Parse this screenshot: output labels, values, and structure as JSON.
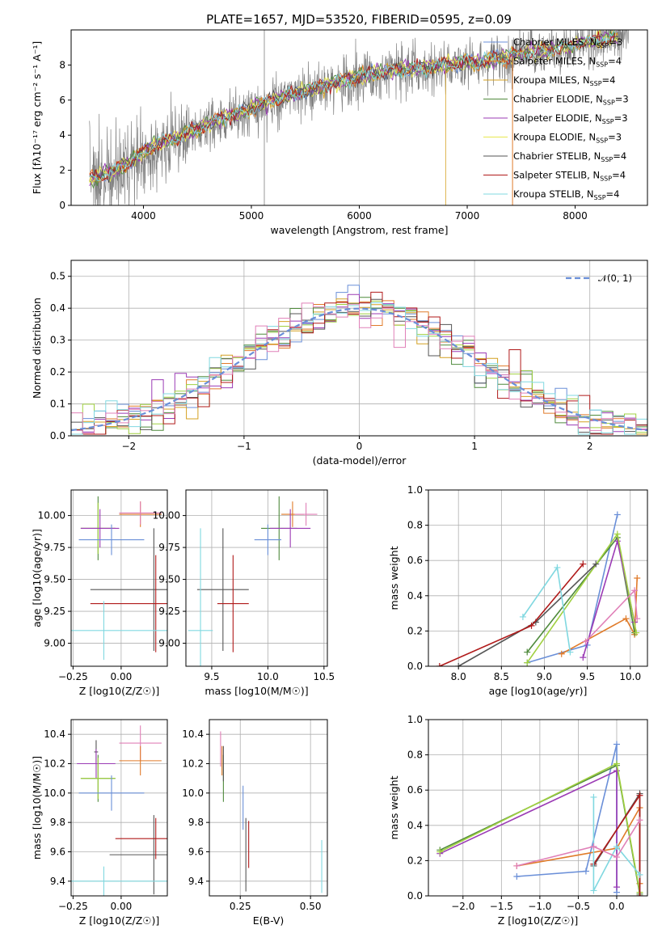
{
  "figure_title": "PLATE=1657, MJD=53520, FIBERID=0595, z=0.09",
  "colors": {
    "Chabrier MILES": "#6a8fd8",
    "Salpeter MILES": "#e07b2a",
    "Kroupa MILES": "#d4a020",
    "Chabrier ELODIE": "#4f8a3c",
    "Salpeter ELODIE": "#9b3bb5",
    "Kroupa ELODIE": "#e8e850",
    "Chabrier STELIB": "#555555",
    "Salpeter STELIB": "#b01a1a",
    "Kroupa STELIB": "#80d8e0",
    "pink": "#e080b8",
    "lime": "#a0d040",
    "data": "#808080",
    "normal": "#6a8fd8"
  },
  "chart_data": [
    {
      "id": "spectrum",
      "type": "line",
      "title": "PLATE=1657, MJD=53520, FIBERID=0595, z=0.09",
      "xlabel": "wavelength [Angstrom, rest frame]",
      "ylabel": "Flux [fλ10⁻¹⁷ erg cm⁻² s⁻¹ A⁻¹]",
      "xlim": [
        3330,
        8670
      ],
      "ylim": [
        0,
        10
      ],
      "xticks": [
        4000,
        5000,
        6000,
        7000,
        8000
      ],
      "yticks": [
        0,
        2,
        4,
        6,
        8
      ],
      "grid": false,
      "legend": "top-right",
      "series": [
        {
          "name": "Chabrier MILES, NSSP=3",
          "label_main": "Chabrier MILES, N",
          "label_sub": "SSP",
          "label_tail": "=3"
        },
        {
          "name": "Salpeter MILES, NSSP=4",
          "label_main": "Salpeter MILES, N",
          "label_sub": "SSP",
          "label_tail": "=4"
        },
        {
          "name": "Kroupa MILES, NSSP=4",
          "label_main": "Kroupa MILES, N",
          "label_sub": "SSP",
          "label_tail": "=4"
        },
        {
          "name": "Chabrier ELODIE, NSSP=3",
          "label_main": "Chabrier ELODIE, N",
          "label_sub": "SSP",
          "label_tail": "=3"
        },
        {
          "name": "Salpeter ELODIE, NSSP=3",
          "label_main": "Salpeter ELODIE, N",
          "label_sub": "SSP",
          "label_tail": "=3"
        },
        {
          "name": "Kroupa ELODIE, NSSP=3",
          "label_main": "Kroupa ELODIE, N",
          "label_sub": "SSP",
          "label_tail": "=3"
        },
        {
          "name": "Chabrier STELIB, NSSP=4",
          "label_main": "Chabrier STELIB, N",
          "label_sub": "SSP",
          "label_tail": "=4"
        },
        {
          "name": "Salpeter STELIB, NSSP=4",
          "label_main": "Salpeter STELIB, N",
          "label_sub": "SSP",
          "label_tail": "=4"
        },
        {
          "name": "Kroupa STELIB, NSSP=4",
          "label_main": "Kroupa STELIB, N",
          "label_sub": "SSP",
          "label_tail": "=4"
        }
      ],
      "continuum_x": [
        3500,
        3700,
        3900,
        4100,
        4300,
        4500,
        4700,
        4900,
        5100,
        5300,
        5500,
        5700,
        5900,
        6100,
        6300,
        6500,
        6700,
        6900,
        7100,
        7300,
        7500,
        7700,
        7900,
        8100,
        8300,
        8500
      ],
      "continuum_y": [
        1.6,
        2.0,
        2.7,
        3.6,
        3.9,
        4.5,
        5.0,
        5.4,
        5.9,
        6.3,
        6.6,
        7.0,
        7.3,
        7.6,
        7.8,
        7.9,
        8.0,
        8.2,
        8.3,
        8.5,
        8.8,
        8.9,
        9.1,
        9.4,
        9.6,
        9.8
      ]
    },
    {
      "id": "residuals",
      "type": "histogram",
      "xlabel": "(data-model)/error",
      "ylabel": "Normed distribution",
      "xlim": [
        -2.5,
        2.5
      ],
      "ylim": [
        0,
        0.55
      ],
      "xticks": [
        -2,
        -1,
        0,
        1,
        2
      ],
      "yticks": [
        0.0,
        0.1,
        0.2,
        0.3,
        0.4,
        0.5
      ],
      "grid": true,
      "legend": "top-right",
      "legend_label": "𝒩(0, 1)",
      "normal_curve": {
        "mean": 0,
        "sigma": 1
      }
    },
    {
      "id": "age-vs-Z",
      "type": "errorbar",
      "xlabel": "Z [log10(Z/Z☉)]",
      "ylabel": "age [log10(age/yr)]",
      "xlim": [
        -0.26,
        0.24
      ],
      "ylim": [
        8.82,
        10.2
      ],
      "xticks": [
        -0.25,
        0.0
      ],
      "yticks": [
        9.0,
        9.25,
        9.5,
        9.75,
        10.0
      ],
      "grid": true,
      "points": [
        {
          "c": "Salpeter MILES",
          "x": 0.1,
          "y": 10.01,
          "xerr": 0.11,
          "yerr": 0.1
        },
        {
          "c": "pink",
          "x": 0.1,
          "y": 10.02,
          "xerr": 0.11,
          "yerr": 0.09
        },
        {
          "c": "Chabrier ELODIE",
          "x": -0.12,
          "y": 9.9,
          "xerr": 0.09,
          "yerr": 0.25
        },
        {
          "c": "lime",
          "x": -0.12,
          "y": 9.9,
          "xerr": 0.09,
          "yerr": 0.2
        },
        {
          "c": "Salpeter ELODIE",
          "x": -0.11,
          "y": 9.9,
          "xerr": 0.1,
          "yerr": 0.15
        },
        {
          "c": "Chabrier MILES",
          "x": -0.05,
          "y": 9.81,
          "xerr": 0.17,
          "yerr": 0.12
        },
        {
          "c": "Chabrier STELIB",
          "x": 0.17,
          "y": 9.42,
          "xerr": 0.33,
          "yerr": 0.48
        },
        {
          "c": "Salpeter STELIB",
          "x": 0.18,
          "y": 9.31,
          "xerr": 0.34,
          "yerr": 0.38
        },
        {
          "c": "Kroupa STELIB",
          "x": -0.09,
          "y": 9.1,
          "xerr": 0.33,
          "yerr": 0.23
        }
      ]
    },
    {
      "id": "age-vs-mass",
      "type": "errorbar",
      "xlabel": "mass [log10(M/M☉)]",
      "ylabel": "",
      "xlim": [
        9.27,
        10.53
      ],
      "ylim": [
        8.82,
        10.2
      ],
      "xticks": [
        9.5,
        10.0,
        10.5
      ],
      "yticks": [
        9.0,
        9.25,
        9.5,
        9.75,
        10.0
      ],
      "grid": true,
      "points": [
        {
          "c": "Salpeter MILES",
          "x": 10.22,
          "y": 10.01,
          "xerr": 0.1,
          "yerr": 0.1
        },
        {
          "c": "pink",
          "x": 10.34,
          "y": 10.01,
          "xerr": 0.1,
          "yerr": 0.09
        },
        {
          "c": "Chabrier ELODIE",
          "x": 10.1,
          "y": 9.9,
          "xerr": 0.16,
          "yerr": 0.25
        },
        {
          "c": "Salpeter ELODIE",
          "x": 10.2,
          "y": 9.9,
          "xerr": 0.18,
          "yerr": 0.15
        },
        {
          "c": "Chabrier MILES",
          "x": 10.0,
          "y": 9.81,
          "xerr": 0.12,
          "yerr": 0.12
        },
        {
          "c": "Chabrier STELIB",
          "x": 9.6,
          "y": 9.42,
          "xerr": 0.23,
          "yerr": 0.48
        },
        {
          "c": "Salpeter STELIB",
          "x": 9.69,
          "y": 9.31,
          "xerr": 0.14,
          "yerr": 0.38
        },
        {
          "c": "Kroupa STELIB",
          "x": 9.4,
          "y": 9.1,
          "xerr": 0.11,
          "yerr": 0.8
        }
      ]
    },
    {
      "id": "weight-vs-age",
      "type": "line",
      "xlabel": "age [log10(age/yr)]",
      "ylabel": "mass weight",
      "xlim": [
        7.65,
        10.2
      ],
      "ylim": [
        0,
        1.0
      ],
      "xticks": [
        8.0,
        8.5,
        9.0,
        9.5,
        10.0
      ],
      "yticks": [
        0.0,
        0.2,
        0.4,
        0.6,
        0.8,
        1.0
      ],
      "grid": true,
      "series": [
        {
          "c": "Chabrier MILES",
          "x": [
            8.8,
            9.5,
            9.85
          ],
          "y": [
            0.02,
            0.12,
            0.86
          ]
        },
        {
          "c": "Salpeter MILES",
          "x": [
            9.2,
            9.95,
            10.05,
            10.08
          ],
          "y": [
            0.07,
            0.27,
            0.18,
            0.5
          ]
        },
        {
          "c": "Chabrier ELODIE",
          "x": [
            8.8,
            9.85,
            10.05
          ],
          "y": [
            0.08,
            0.73,
            0.19
          ]
        },
        {
          "c": "Salpeter ELODIE",
          "x": [
            9.45,
            9.85,
            10.05
          ],
          "y": [
            0.05,
            0.71,
            0.25
          ]
        },
        {
          "c": "lime",
          "x": [
            8.8,
            9.85,
            10.07
          ],
          "y": [
            0.02,
            0.75,
            0.19
          ]
        },
        {
          "c": "Chabrier STELIB",
          "x": [
            8.0,
            8.9,
            9.6
          ],
          "y": [
            0.0,
            0.25,
            0.58
          ]
        },
        {
          "c": "Salpeter STELIB",
          "x": [
            7.78,
            8.85,
            9.45
          ],
          "y": [
            0.0,
            0.23,
            0.58
          ]
        },
        {
          "c": "Kroupa STELIB",
          "x": [
            8.75,
            9.15,
            9.3
          ],
          "y": [
            0.28,
            0.56,
            0.08
          ]
        },
        {
          "c": "pink",
          "x": [
            9.48,
            10.05,
            10.08
          ],
          "y": [
            0.14,
            0.43,
            0.27
          ]
        }
      ]
    },
    {
      "id": "mass-vs-Z",
      "type": "errorbar",
      "xlabel": "Z [log10(Z/Z☉)]",
      "ylabel": "mass [log10(M/M☉)]",
      "xlim": [
        -0.26,
        0.24
      ],
      "ylim": [
        9.3,
        10.5
      ],
      "xticks": [
        -0.25,
        0.0
      ],
      "yticks": [
        9.4,
        9.6,
        9.8,
        10.0,
        10.2,
        10.4
      ],
      "grid": true,
      "points": [
        {
          "c": "pink",
          "x": 0.1,
          "y": 10.34,
          "xerr": 0.11,
          "yerr": 0.12
        },
        {
          "c": "Salpeter MILES",
          "x": 0.1,
          "y": 10.22,
          "xerr": 0.11,
          "yerr": 0.1
        },
        {
          "c": "Chabrier STELIB",
          "x": -0.13,
          "y": 10.28,
          "xerr": 0.01,
          "yerr": 0.08
        },
        {
          "c": "Salpeter ELODIE",
          "x": -0.13,
          "y": 10.2,
          "xerr": 0.1,
          "yerr": 0.1
        },
        {
          "c": "Chabrier ELODIE",
          "x": -0.12,
          "y": 10.1,
          "xerr": 0.09,
          "yerr": 0.16
        },
        {
          "c": "lime",
          "x": -0.12,
          "y": 10.1,
          "xerr": 0.09,
          "yerr": 0.14
        },
        {
          "c": "Chabrier MILES",
          "x": -0.05,
          "y": 10.0,
          "xerr": 0.17,
          "yerr": 0.12
        },
        {
          "c": "Chabrier STELIB",
          "x": 0.17,
          "y": 9.58,
          "xerr": 0.23,
          "yerr": 0.27
        },
        {
          "c": "Salpeter STELIB",
          "x": 0.18,
          "y": 9.69,
          "xerr": 0.21,
          "yerr": 0.14
        },
        {
          "c": "Kroupa STELIB",
          "x": -0.09,
          "y": 9.4,
          "xerr": 0.33,
          "yerr": 0.1
        }
      ]
    },
    {
      "id": "mass-vs-ebv",
      "type": "errorbar",
      "xlabel": "E(B-V)",
      "ylabel": "",
      "xlim": [
        0.14,
        0.56
      ],
      "ylim": [
        9.3,
        10.5
      ],
      "xticks": [
        0.25,
        0.5
      ],
      "yticks": [
        9.4,
        9.6,
        9.8,
        10.0,
        10.2,
        10.4
      ],
      "grid": true,
      "points": [
        {
          "c": "pink",
          "x": 0.18,
          "y": 10.3,
          "xerr": 0.0,
          "yerr": 0.12
        },
        {
          "c": "Salpeter MILES",
          "x": 0.185,
          "y": 10.22,
          "xerr": 0.0,
          "yerr": 0.1
        },
        {
          "c": "Chabrier ELODIE",
          "x": 0.19,
          "y": 10.1,
          "xerr": 0.0,
          "yerr": 0.16
        },
        {
          "c": "Chabrier STELIB",
          "x": 0.19,
          "y": 10.2,
          "xerr": 0.0,
          "yerr": 0.12
        },
        {
          "c": "Chabrier MILES",
          "x": 0.26,
          "y": 9.9,
          "xerr": 0.0,
          "yerr": 0.15
        },
        {
          "c": "Chabrier STELIB",
          "x": 0.27,
          "y": 9.58,
          "xerr": 0.0,
          "yerr": 0.25
        },
        {
          "c": "Salpeter STELIB",
          "x": 0.28,
          "y": 9.65,
          "xerr": 0.0,
          "yerr": 0.16
        },
        {
          "c": "Kroupa STELIB",
          "x": 0.54,
          "y": 9.5,
          "xerr": 0.0,
          "yerr": 0.18
        }
      ]
    },
    {
      "id": "weight-vs-Z",
      "type": "line",
      "xlabel": "Z [log10(Z/Z☉)]",
      "ylabel": "mass weight",
      "xlim": [
        -2.45,
        0.4
      ],
      "ylim": [
        0,
        1.0
      ],
      "xticks": [
        -2.0,
        -1.5,
        -1.0,
        -0.5,
        0.0
      ],
      "yticks": [
        0.0,
        0.2,
        0.4,
        0.6,
        0.8,
        1.0
      ],
      "grid": true,
      "series": [
        {
          "c": "Chabrier MILES",
          "x": [
            -1.3,
            -0.4,
            0.0,
            0.0
          ],
          "y": [
            0.11,
            0.14,
            0.86,
            0.02
          ]
        },
        {
          "c": "Salpeter MILES",
          "x": [
            -1.3,
            0.0,
            0.3,
            0.3
          ],
          "y": [
            0.17,
            0.27,
            0.5,
            0.07
          ]
        },
        {
          "c": "Chabrier ELODIE",
          "x": [
            -2.3,
            0.0,
            0.3
          ],
          "y": [
            0.26,
            0.74,
            0.01
          ]
        },
        {
          "c": "Salpeter ELODIE",
          "x": [
            -2.3,
            0.0,
            0.0
          ],
          "y": [
            0.24,
            0.71,
            0.05
          ]
        },
        {
          "c": "lime",
          "x": [
            -2.3,
            0.0,
            0.3
          ],
          "y": [
            0.25,
            0.75,
            0.02
          ]
        },
        {
          "c": "Chabrier STELIB",
          "x": [
            -0.3,
            0.3,
            0.3
          ],
          "y": [
            0.17,
            0.58,
            0.0
          ]
        },
        {
          "c": "Salpeter STELIB",
          "x": [
            -0.3,
            0.3,
            0.3
          ],
          "y": [
            0.18,
            0.57,
            0.0
          ]
        },
        {
          "c": "Kroupa STELIB",
          "x": [
            -0.3,
            -0.3,
            0.0,
            0.3
          ],
          "y": [
            0.56,
            0.03,
            0.28,
            0.12
          ]
        },
        {
          "c": "pink",
          "x": [
            -1.3,
            -0.3,
            0.0,
            0.3
          ],
          "y": [
            0.17,
            0.28,
            0.22,
            0.43
          ]
        }
      ]
    }
  ]
}
